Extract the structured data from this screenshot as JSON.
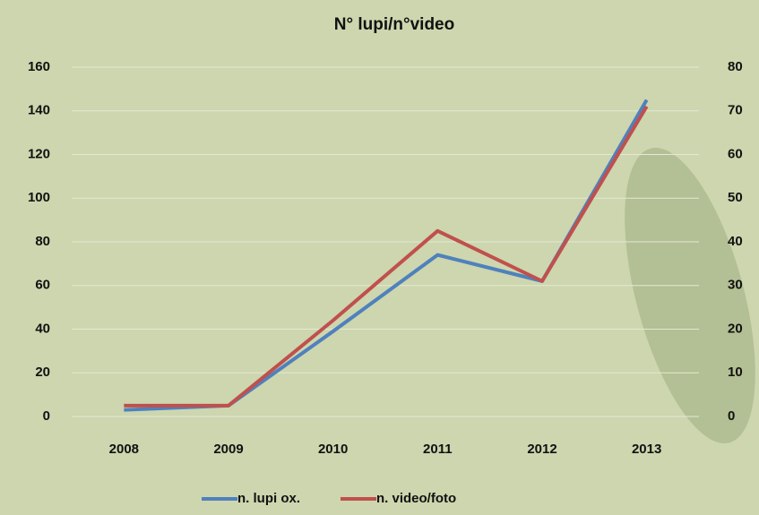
{
  "chart_data": {
    "type": "line",
    "title": "N° lupi/n°video",
    "categories": [
      "2008",
      "2009",
      "2010",
      "2011",
      "2012",
      "2013"
    ],
    "series": [
      {
        "name": "n. lupi ox.",
        "color": "#4f81bd",
        "values": [
          3,
          5,
          39,
          74,
          62,
          145
        ]
      },
      {
        "name": "n. video/foto",
        "color": "#c0504d",
        "axis": "y2",
        "values": [
          2.5,
          2.5,
          22,
          42.5,
          31,
          71
        ]
      }
    ],
    "ylim": [
      0,
      160
    ],
    "yticks": [
      0,
      20,
      40,
      60,
      80,
      100,
      120,
      140,
      160
    ],
    "y2lim": [
      0,
      80
    ],
    "y2ticks": [
      0,
      10,
      20,
      30,
      40,
      50,
      60,
      70,
      80
    ],
    "grid": true,
    "legend": "bottom"
  }
}
